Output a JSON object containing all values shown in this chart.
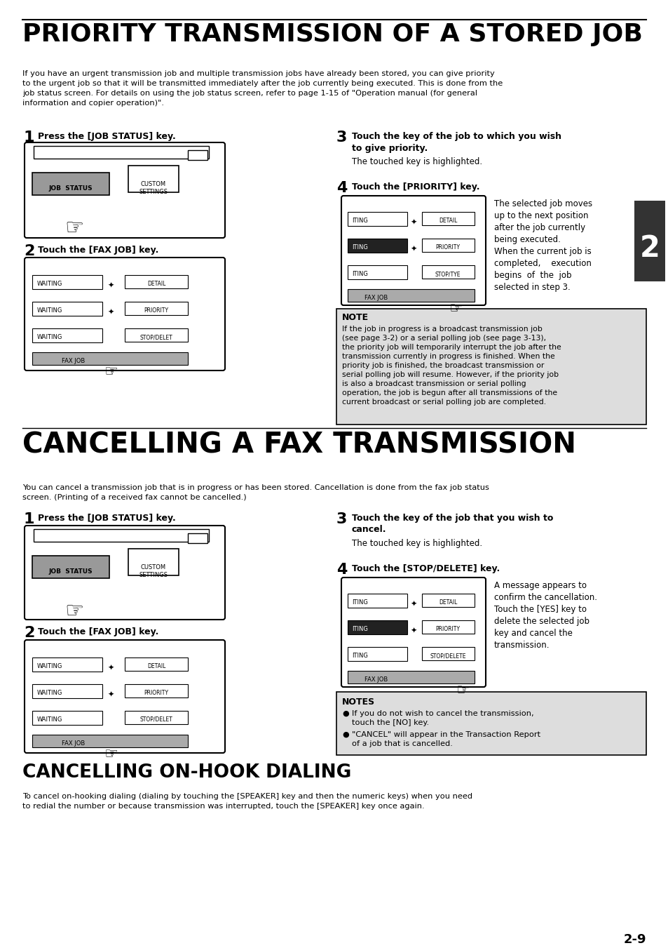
{
  "page_bg": "#ffffff",
  "title1": "PRIORITY TRANSMISSION OF A STORED JOB",
  "title2": "CANCELLING A FAX TRANSMISSION",
  "title3": "CANCELLING ON-HOOK DIALING",
  "page_number": "2-9",
  "section_tab": "2",
  "intro1": "If you have an urgent transmission job and multiple transmission jobs have already been stored, you can give priority\nto the urgent job so that it will be transmitted immediately after the job currently being executed. This is done from the\njob status screen. For details on using the job status screen, refer to page 1-15 of \"Operation manual (for general\ninformation and copier operation)\".",
  "intro2": "You can cancel a transmission job that is in progress or has been stored. Cancellation is done from the fax job status\nscreen. (Printing of a received fax cannot be cancelled.)",
  "intro3": "To cancel on-hooking dialing (dialing by touching the [SPEAKER] key and then the numeric keys) when you need\nto redial the number or because transmission was interrupted, touch the [SPEAKER] key once again.",
  "step1a_text": "Press the [JOB STATUS] key.",
  "step2a_text": "Touch the [FAX JOB] key.",
  "step3a_text": "Touch the key of the job to which you wish\nto give priority.",
  "step3a_sub": "The touched key is highlighted.",
  "step4a_text": "Touch the [PRIORITY] key.",
  "step4a_desc": "The selected job moves\nup to the next position\nafter the job currently\nbeing executed.\nWhen the current job is\ncompleted,    execution\nbegins  of  the  job\nselected in step 3.",
  "note_title": "NOTE",
  "note_text": "If the job in progress is a broadcast transmission job\n(see page 3-2) or a serial polling job (see page 3-13),\nthe priority job will temporarily interrupt the job after the\ntransmission currently in progress is finished. When the\npriority job is finished, the broadcast transmission or\nserial polling job will resume. However, if the priority job\nis also a broadcast transmission or serial polling\noperation, the job is begun after all transmissions of the\ncurrent broadcast or serial polling job are completed.",
  "step1b_text": "Press the [JOB STATUS] key.",
  "step2b_text": "Touch the [FAX JOB] key.",
  "step3b_text": "Touch the key of the job that you wish to\ncancel.",
  "step3b_sub": "The touched key is highlighted.",
  "step4b_text": "Touch the [STOP/DELETE] key.",
  "step4b_desc": "A message appears to\nconfirm the cancellation.\nTouch the [YES] key to\ndelete the selected job\nkey and cancel the\ntransmission.",
  "notes_title": "NOTES",
  "notes_text1": "If you do not wish to cancel the transmission,\ntouch the [NO] key.",
  "notes_text2": "\"CANCEL\" will appear in the Transaction Report\nof a job that is cancelled."
}
